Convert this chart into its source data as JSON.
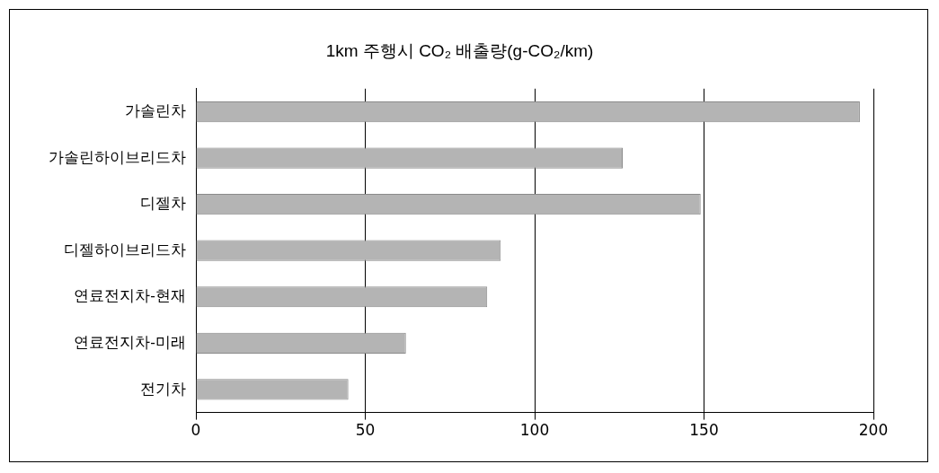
{
  "chart_data": {
    "type": "bar",
    "orientation": "horizontal",
    "title": "1km 주행시 CO₂ 배출량(g-CO₂/km)",
    "categories": [
      "가솔린차",
      "가솔린하이브리드차",
      "디젤차",
      "디젤하이브리드차",
      "연료전지차-현재",
      "연료전지차-미래",
      "전기차"
    ],
    "values": [
      196,
      126,
      149,
      90,
      86,
      62,
      45
    ],
    "color": "#b4b4b4",
    "xlim": [
      0,
      200
    ],
    "xticks": [
      0,
      50,
      100,
      150,
      200
    ],
    "grid": "x",
    "legend": false
  }
}
